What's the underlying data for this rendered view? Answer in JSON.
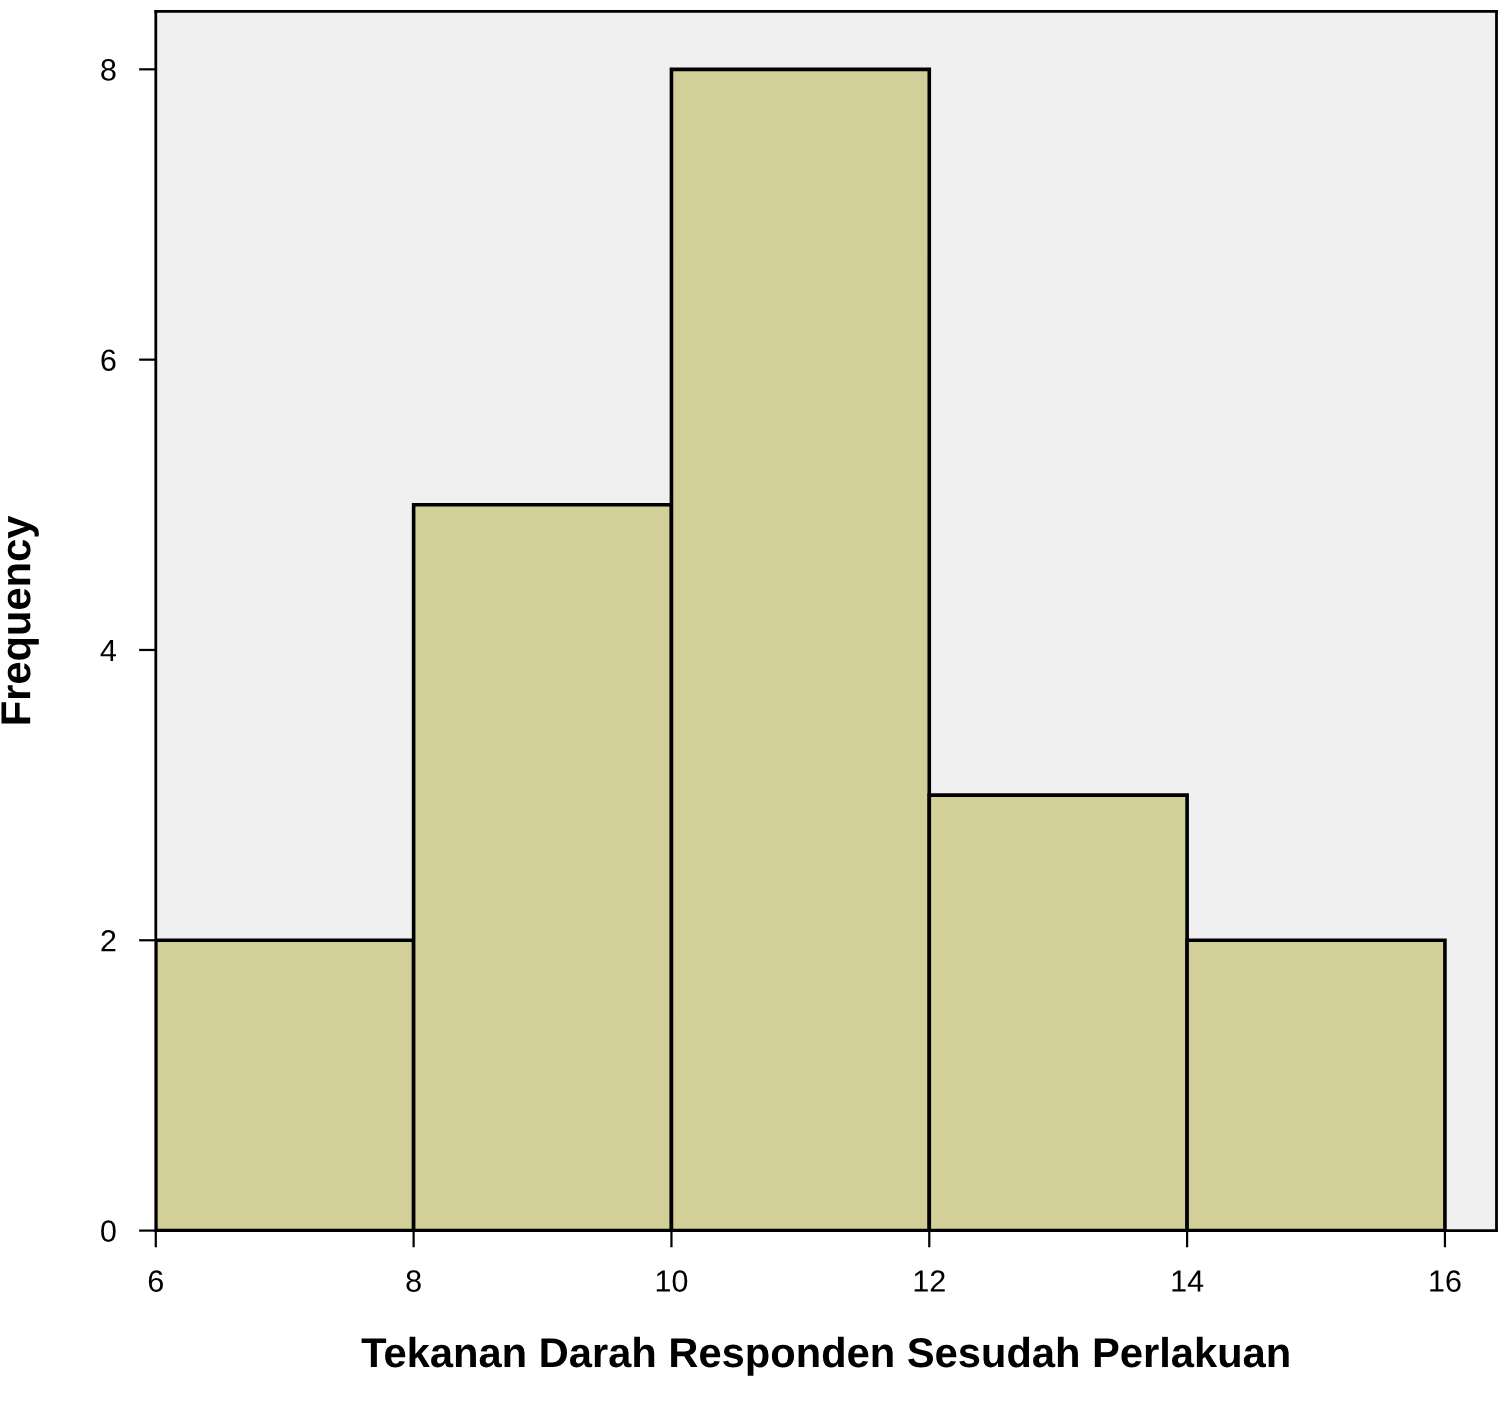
{
  "chart_data": {
    "type": "histogram",
    "xlabel": "Tekanan Darah Responden Sesudah Perlakuan",
    "ylabel": "Frequency",
    "bins": [
      6,
      8,
      10,
      12,
      14,
      16
    ],
    "values": [
      2,
      5,
      8,
      3,
      2
    ],
    "color": "#d3cf98",
    "xlim": [
      6,
      16.4
    ],
    "ylim": [
      0,
      8.4
    ],
    "xticks": [
      6,
      8,
      10,
      12,
      14,
      16
    ],
    "yticks": [
      0,
      2,
      4,
      6,
      8
    ],
    "grid": false
  }
}
